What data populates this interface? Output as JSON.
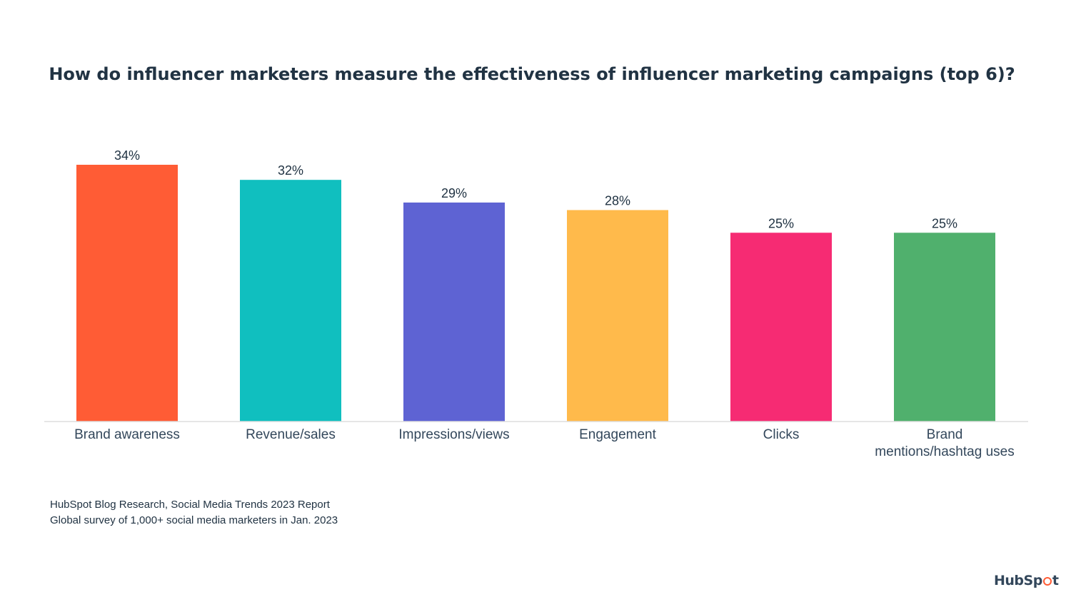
{
  "title": "How do influencer marketers measure the effectiveness of influencer marketing campaigns (top 6)?",
  "chart_data": {
    "type": "bar",
    "title": "How do influencer marketers measure the effectiveness of influencer marketing campaigns (top 6)?",
    "xlabel": "",
    "ylabel": "",
    "categories": [
      [
        "Brand awareness"
      ],
      [
        "Revenue/sales"
      ],
      [
        "Impressions/views"
      ],
      [
        "Engagement"
      ],
      [
        "Clicks"
      ],
      [
        "Brand",
        "mentions/hashtag uses"
      ]
    ],
    "values": [
      34,
      32,
      29,
      28,
      25,
      25
    ],
    "value_labels": [
      "34%",
      "32%",
      "29%",
      "28%",
      "25%",
      "25%"
    ],
    "colors": [
      "#ff5c35",
      "#10bfbf",
      "#5e63d3",
      "#ffba4b",
      "#f62b73",
      "#50b06d"
    ],
    "ylim": [
      0,
      34
    ],
    "grid": false,
    "legend": "none"
  },
  "source": {
    "line1": "HubSpot Blog Research, Social Media Trends 2023 Report",
    "line2": "Global survey of 1,000+ social media marketers in Jan. 2023"
  },
  "logo": {
    "text_a": "HubSp",
    "text_b": "t"
  }
}
